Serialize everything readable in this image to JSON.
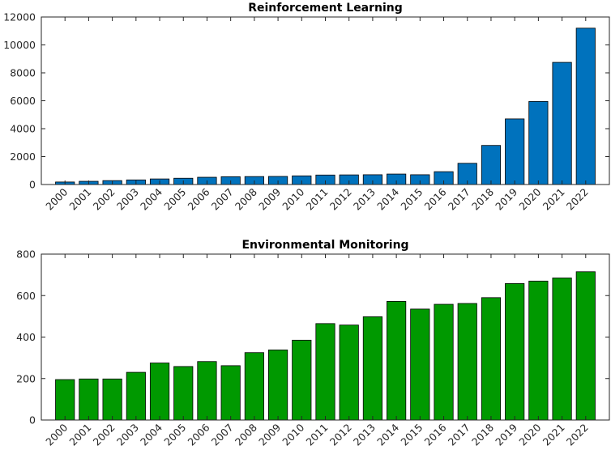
{
  "chart_data": [
    {
      "type": "bar",
      "title": "Reinforcement Learning",
      "xlabel": "",
      "ylabel": "",
      "categories": [
        "2000",
        "2001",
        "2002",
        "2003",
        "2004",
        "2005",
        "2006",
        "2007",
        "2008",
        "2009",
        "2010",
        "2011",
        "2012",
        "2013",
        "2014",
        "2015",
        "2016",
        "2017",
        "2018",
        "2019",
        "2020",
        "2021",
        "2022"
      ],
      "values": [
        180,
        230,
        280,
        330,
        400,
        450,
        520,
        560,
        570,
        580,
        620,
        680,
        690,
        700,
        750,
        700,
        920,
        1520,
        2800,
        4700,
        5950,
        8750,
        11200
      ],
      "ylim": [
        0,
        12000
      ],
      "yticks": [
        0,
        2000,
        4000,
        6000,
        8000,
        10000,
        12000
      ],
      "bar_color": "#0072BD",
      "grid": false,
      "legend": "none"
    },
    {
      "type": "bar",
      "title": "Environmental Monitoring",
      "xlabel": "",
      "ylabel": "",
      "categories": [
        "2000",
        "2001",
        "2002",
        "2003",
        "2004",
        "2005",
        "2006",
        "2007",
        "2008",
        "2009",
        "2010",
        "2011",
        "2012",
        "2013",
        "2014",
        "2015",
        "2016",
        "2017",
        "2018",
        "2019",
        "2020",
        "2021",
        "2022"
      ],
      "values": [
        195,
        198,
        198,
        230,
        275,
        258,
        282,
        262,
        325,
        338,
        385,
        465,
        458,
        498,
        572,
        535,
        558,
        562,
        590,
        658,
        670,
        685,
        715
      ],
      "ylim": [
        0,
        800
      ],
      "yticks": [
        0,
        200,
        400,
        600,
        800
      ],
      "bar_color": "#009900",
      "grid": false,
      "legend": "none"
    }
  ]
}
